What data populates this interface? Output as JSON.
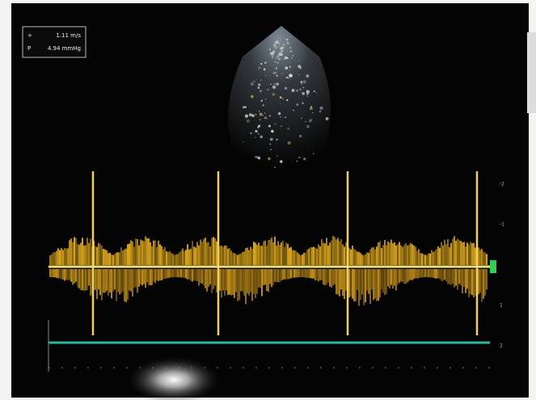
{
  "measurements": [
    {
      "label": "+",
      "value": "1.11 m/s"
    },
    {
      "label": "P",
      "value": "4.94 mmHg"
    }
  ],
  "velocity_scale": [
    "-2",
    "-1",
    "1",
    "2"
  ]
}
